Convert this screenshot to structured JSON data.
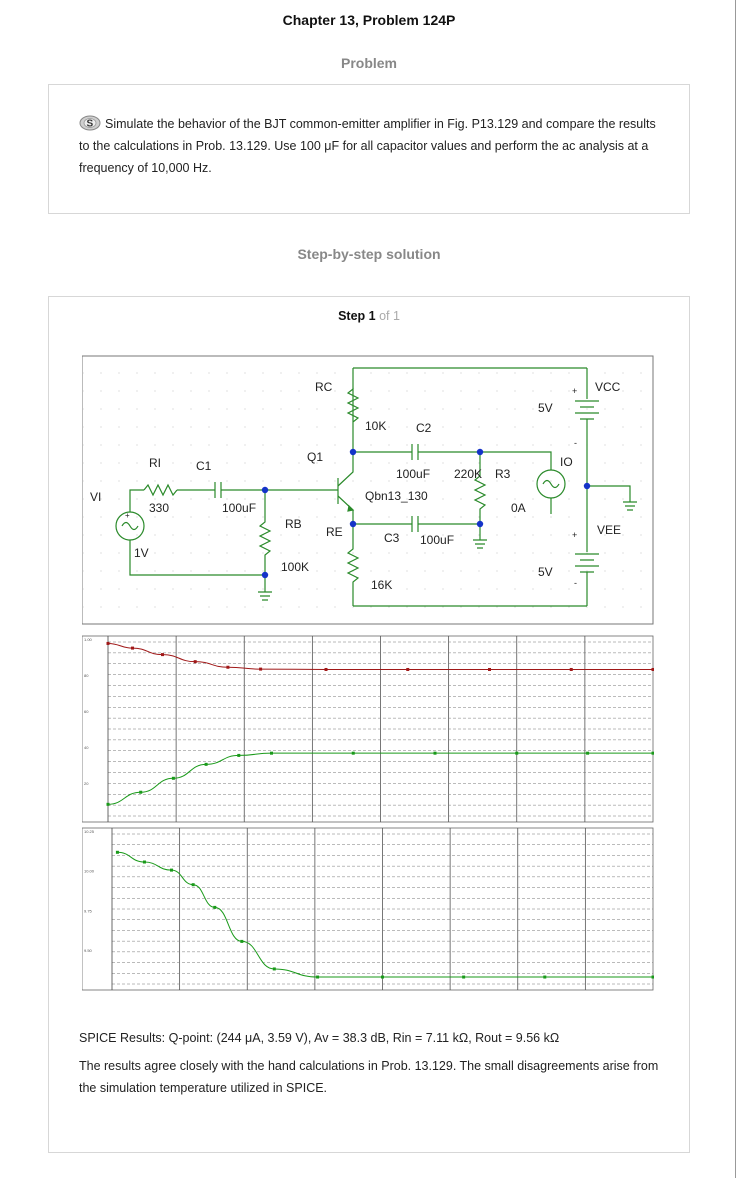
{
  "header": {
    "title": "Chapter 13, Problem 124P"
  },
  "problem": {
    "heading": "Problem",
    "icon": "spice-logo-icon",
    "text": "Simulate the behavior of the BJT common-emitter  amplifier in Fig. P13.129 and compare the results to the calculations in Prob. 13.129. Use 100  μF for all capacitor values and perform the ac analysis at a frequency of 10,000 Hz."
  },
  "solution": {
    "heading": "Step-by-step solution",
    "step_label": "Step",
    "step_num": "1",
    "step_of": "of 1"
  },
  "circuit": {
    "labels": {
      "vi": "VI",
      "vi_val": "1V",
      "ri": "RI",
      "ri_val": "330",
      "c1": "C1",
      "c1_val": "100uF",
      "rb": "RB",
      "rb_val": "100K",
      "q1": "Q1",
      "q_model": "Qbn13_130",
      "rc": "RC",
      "rc_val": "10K",
      "re": "RE",
      "re_val": "16K",
      "c2": "C2",
      "c2_val": "100uF",
      "c3": "C3",
      "c3_val": "100uF",
      "r3_val": "220K",
      "r3": "R3",
      "io": "IO",
      "io_val": "0A",
      "vcc": "VCC",
      "vcc_val": "5V",
      "vee": "VEE",
      "vee_val": "5V",
      "plus1": "+",
      "minus1": "-",
      "plus2": "+",
      "minus2": "-",
      "plus3": "+"
    }
  },
  "chart_data": [
    {
      "type": "line",
      "title": "",
      "y_tick_labels": [
        "1.00",
        "80",
        "60",
        "40",
        "20"
      ],
      "series": [
        {
          "name": "",
          "color": "#a01818",
          "points": [
            [
              0,
              0.96
            ],
            [
              0.045,
              0.935
            ],
            [
              0.1,
              0.9
            ],
            [
              0.16,
              0.862
            ],
            [
              0.22,
              0.832
            ],
            [
              0.28,
              0.822
            ],
            [
              0.4,
              0.82
            ],
            [
              0.55,
              0.82
            ],
            [
              0.7,
              0.82
            ],
            [
              0.85,
              0.82
            ],
            [
              1.0,
              0.82
            ]
          ]
        },
        {
          "name": "",
          "color": "#1a9a1a",
          "points": [
            [
              0,
              0.095
            ],
            [
              0.06,
              0.16
            ],
            [
              0.12,
              0.235
            ],
            [
              0.18,
              0.31
            ],
            [
              0.24,
              0.358
            ],
            [
              0.3,
              0.37
            ],
            [
              0.45,
              0.37
            ],
            [
              0.6,
              0.37
            ],
            [
              0.75,
              0.37
            ],
            [
              0.88,
              0.37
            ],
            [
              1.0,
              0.37
            ]
          ]
        }
      ]
    },
    {
      "type": "line",
      "title": "",
      "y_tick_labels": [
        "10.25",
        "10.00",
        "9.75",
        "9.50"
      ],
      "series": [
        {
          "name": "",
          "color": "#1a9a1a",
          "points": [
            [
              0.01,
              0.85
            ],
            [
              0.06,
              0.79
            ],
            [
              0.11,
              0.74
            ],
            [
              0.15,
              0.65
            ],
            [
              0.19,
              0.51
            ],
            [
              0.24,
              0.3
            ],
            [
              0.3,
              0.13
            ],
            [
              0.38,
              0.08
            ],
            [
              0.5,
              0.08
            ],
            [
              0.65,
              0.08
            ],
            [
              0.8,
              0.08
            ],
            [
              1.0,
              0.08
            ]
          ]
        }
      ]
    }
  ],
  "results": {
    "spice": "SPICE Results:  Q-point: (244 μA, 3.59 V),  Av = 38.3 dB,  Rin = 7.11 kΩ,  Rout = 9.56 kΩ",
    "conclusion": "The results agree closely with the hand calculations in Prob. 13.129.  The small disagreements arise from the simulation temperature utilized in SPICE."
  }
}
